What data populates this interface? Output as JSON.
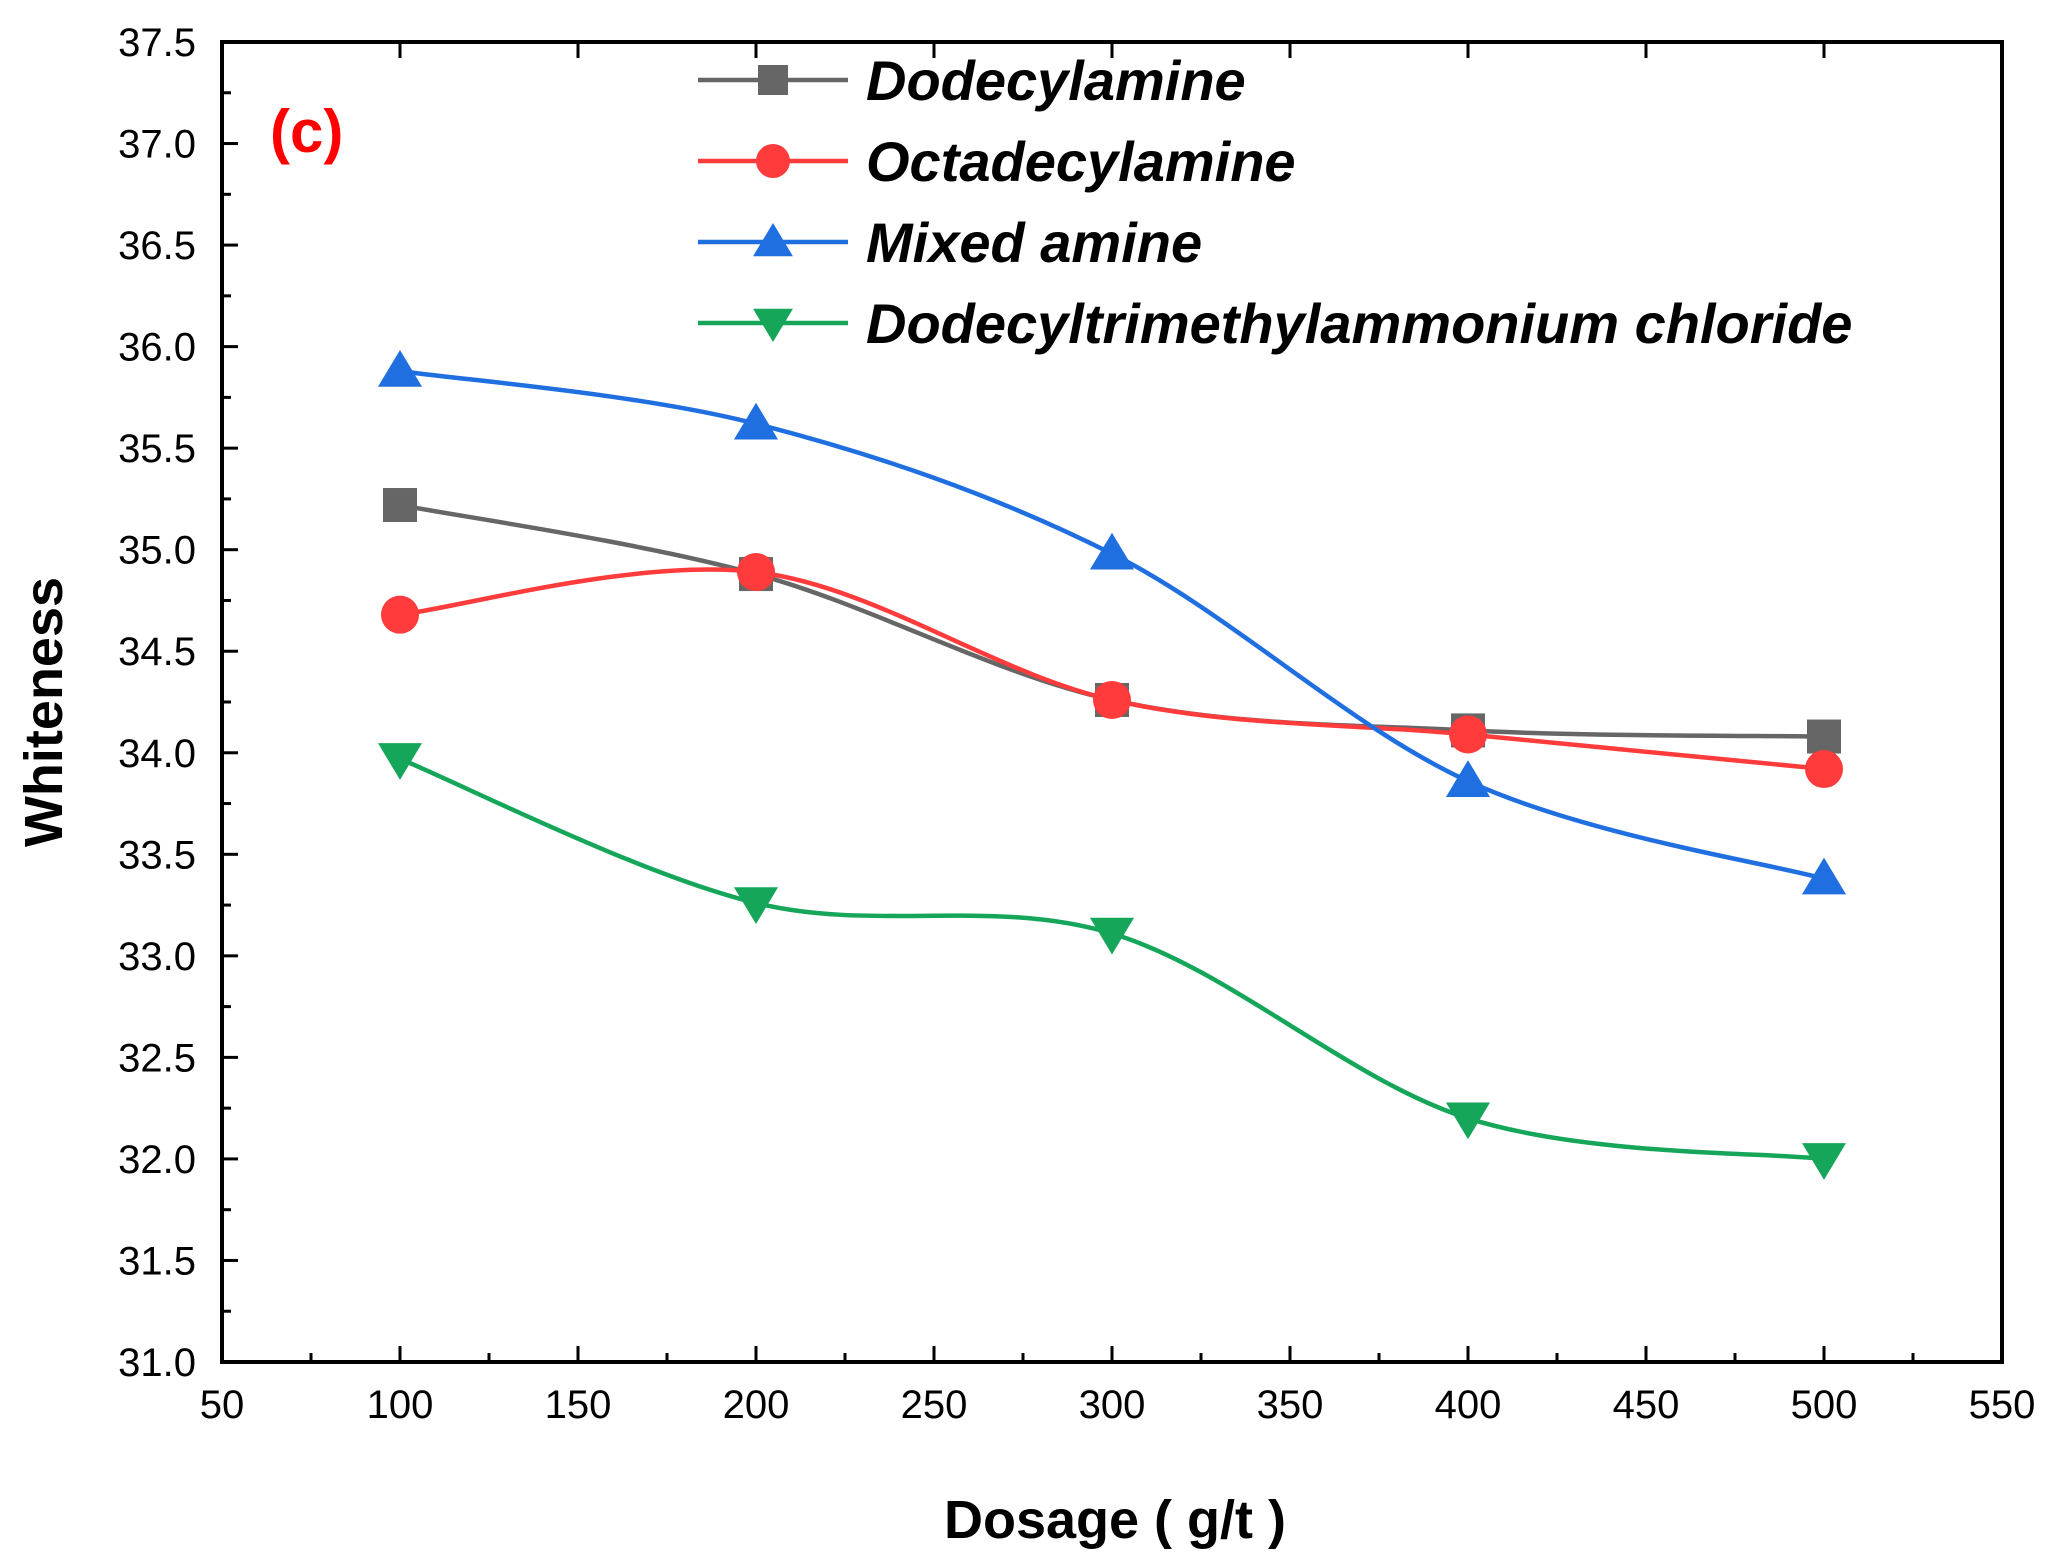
{
  "chart_data": {
    "type": "line",
    "panel_label": "(c)",
    "xlabel": "Dosage ( g/t )",
    "ylabel": "Whiteness",
    "xlim": [
      50,
      550
    ],
    "ylim": [
      31.0,
      37.5
    ],
    "x_ticks": [
      50,
      100,
      150,
      200,
      250,
      300,
      350,
      400,
      450,
      500,
      550
    ],
    "y_ticks": [
      "31.0",
      "31.5",
      "32.0",
      "32.5",
      "33.0",
      "33.5",
      "34.0",
      "34.5",
      "35.0",
      "35.5",
      "36.0",
      "36.5",
      "37.0",
      "37.5"
    ],
    "grid": false,
    "legend_position": "top-right",
    "x": [
      100,
      200,
      300,
      400,
      500
    ],
    "series": [
      {
        "name": "Dodecylamine",
        "marker": "square",
        "color": "#666666",
        "values": [
          35.22,
          34.88,
          34.26,
          34.11,
          34.08
        ]
      },
      {
        "name": "Octadecylamine",
        "marker": "circle",
        "color": "#ff3b3b",
        "values": [
          34.68,
          34.89,
          34.26,
          34.09,
          33.92
        ]
      },
      {
        "name": "Mixed amine",
        "marker": "triangle-up",
        "color": "#1f6fe0",
        "values": [
          35.88,
          35.62,
          34.98,
          33.86,
          33.38
        ]
      },
      {
        "name": "Dodecyltrimethylammonium chloride",
        "marker": "triangle-down",
        "color": "#16a65a",
        "values": [
          33.97,
          33.26,
          33.11,
          32.2,
          32.0
        ]
      }
    ]
  }
}
